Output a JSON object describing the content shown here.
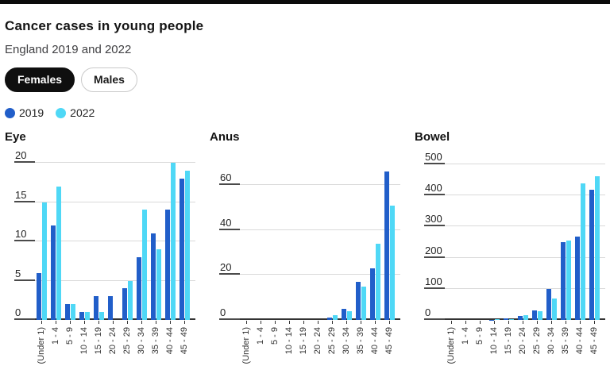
{
  "page": {
    "title": "Cancer cases in young people",
    "subtitle": "England 2019 and 2022"
  },
  "toggle": {
    "options": [
      {
        "label": "Females",
        "selected": true
      },
      {
        "label": "Males",
        "selected": false
      }
    ]
  },
  "legend": {
    "series": [
      {
        "label": "2019",
        "color": "#215ec9"
      },
      {
        "label": "2022",
        "color": "#4fd8f6"
      }
    ],
    "position": "top-left"
  },
  "colors": {
    "series_2019": "#215ec9",
    "series_2022": "#4fd8f6",
    "top_bar": "#0b0b0b",
    "gridline": "#d9d9d9",
    "axis": "#333333"
  },
  "chart_data": [
    {
      "type": "bar",
      "title": "Eye",
      "categories": [
        "0 (Under 1)",
        "1 - 4",
        "5 - 9",
        "10 - 14",
        "15 - 19",
        "20 - 24",
        "25 - 29",
        "30 - 34",
        "35 - 39",
        "40 - 44",
        "45 - 49"
      ],
      "series": [
        {
          "name": "2019",
          "values": [
            6,
            12,
            2,
            1,
            3,
            3,
            4,
            8,
            11,
            14,
            18
          ]
        },
        {
          "name": "2022",
          "values": [
            15,
            17,
            2,
            1,
            1,
            0,
            5,
            14,
            9,
            20,
            19
          ]
        }
      ],
      "yticks": [
        0,
        5,
        10,
        15,
        20
      ],
      "ylim": [
        0,
        20
      ],
      "render_max": 20,
      "grid": true
    },
    {
      "type": "bar",
      "title": "Anus",
      "categories": [
        "0 (Under 1)",
        "1 - 4",
        "5 - 9",
        "10 - 14",
        "15 - 19",
        "20 - 24",
        "25 - 29",
        "30 - 34",
        "35 - 39",
        "40 - 44",
        "45 - 49"
      ],
      "series": [
        {
          "name": "2019",
          "values": [
            0,
            0,
            0,
            0,
            0,
            0,
            1,
            5,
            17,
            23,
            66
          ]
        },
        {
          "name": "2022",
          "values": [
            0,
            0,
            0,
            0,
            0,
            0,
            2,
            4,
            15,
            34,
            51
          ]
        }
      ],
      "yticks": [
        0,
        20,
        40,
        60
      ],
      "ylim": [
        0,
        70
      ],
      "render_max": 70,
      "grid": true
    },
    {
      "type": "bar",
      "title": "Bowel",
      "categories": [
        "0 (Under 1)",
        "1 - 4",
        "5 - 9",
        "10 - 14",
        "15 - 19",
        "20 - 24",
        "25 - 29",
        "30 - 34",
        "35 - 39",
        "40 - 44",
        "45 - 49"
      ],
      "series": [
        {
          "name": "2019",
          "values": [
            0,
            0,
            0,
            1,
            4,
            12,
            30,
            100,
            250,
            268,
            418
          ]
        },
        {
          "name": "2022",
          "values": [
            0,
            0,
            0,
            3,
            3,
            15,
            27,
            68,
            255,
            438,
            462
          ]
        }
      ],
      "yticks": [
        0,
        100,
        200,
        300,
        400,
        500
      ],
      "ylim": [
        0,
        505
      ],
      "render_max": 505,
      "grid": true
    }
  ]
}
